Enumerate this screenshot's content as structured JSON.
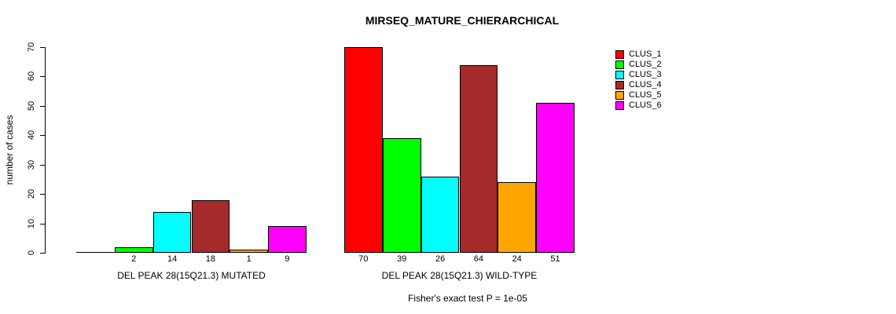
{
  "page": {
    "background": "#FFFFFF"
  },
  "chart_data": {
    "type": "bar",
    "title": "MIRSEQ_MATURE_CHIERARCHICAL",
    "ylabel": "number of cases",
    "xlabel": "",
    "ylim": [
      0,
      70
    ],
    "yticks": [
      0,
      10,
      20,
      30,
      40,
      50,
      60,
      70
    ],
    "grid": false,
    "categories": [
      "CLUS_1",
      "CLUS_2",
      "CLUS_3",
      "CLUS_4",
      "CLUS_5",
      "CLUS_6"
    ],
    "series_colors": [
      "#FF0000",
      "#00FF00",
      "#00FFFF",
      "#A52A2A",
      "#FFA500",
      "#FF00FF"
    ],
    "groups": [
      {
        "label": "DEL PEAK 28(15Q21.3) MUTATED",
        "values": [
          0,
          2,
          14,
          18,
          1,
          9
        ],
        "value_labels": [
          "",
          "2",
          "14",
          "18",
          "1",
          "9"
        ]
      },
      {
        "label": "DEL PEAK 28(15Q21.3) WILD-TYPE",
        "values": [
          70,
          39,
          26,
          64,
          24,
          51
        ],
        "value_labels": [
          "70",
          "39",
          "26",
          "64",
          "24",
          "51"
        ]
      }
    ],
    "legend": {
      "position": "right",
      "entries": [
        {
          "label": "CLUS_1",
          "color": "#FF0000"
        },
        {
          "label": "CLUS_2",
          "color": "#00FF00"
        },
        {
          "label": "CLUS_3",
          "color": "#00FFFF"
        },
        {
          "label": "CLUS_4",
          "color": "#A52A2A"
        },
        {
          "label": "CLUS_5",
          "color": "#FFA500"
        },
        {
          "label": "CLUS_6",
          "color": "#FF00FF"
        }
      ]
    },
    "annotation": "Fisher's exact test P = 1e-05"
  }
}
